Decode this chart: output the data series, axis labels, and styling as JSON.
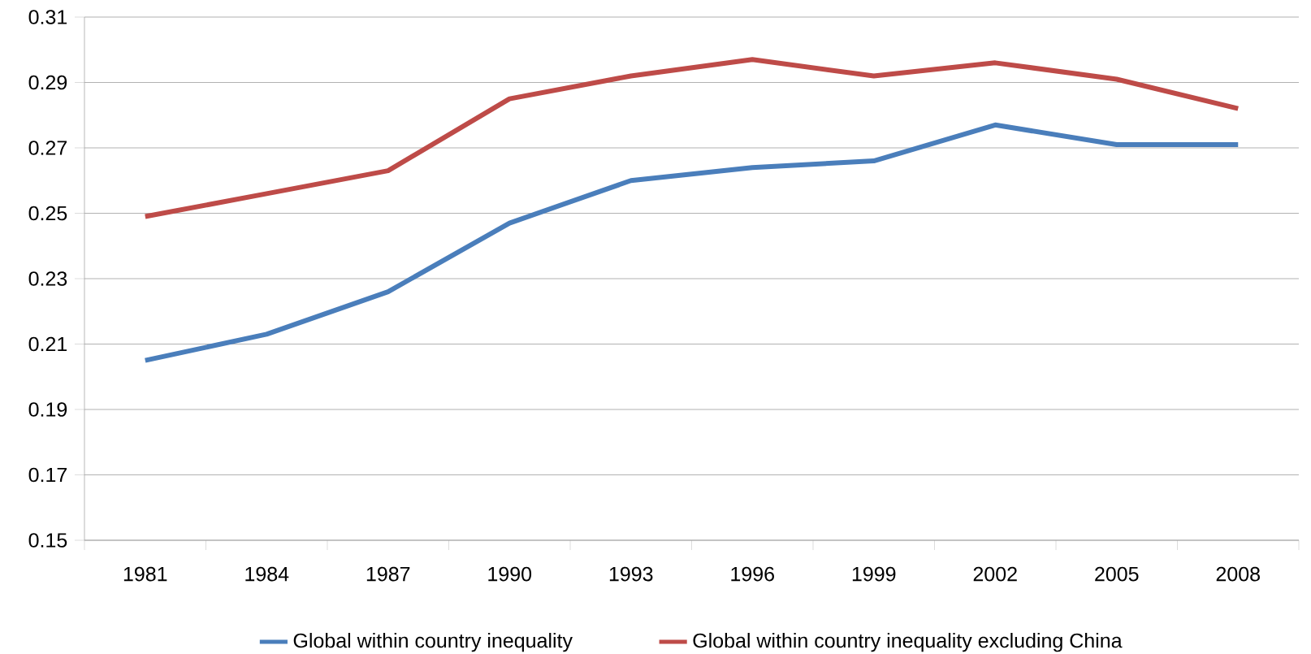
{
  "chart_data": {
    "type": "line",
    "categories": [
      "1981",
      "1984",
      "1987",
      "1990",
      "1993",
      "1996",
      "1999",
      "2002",
      "2005",
      "2008"
    ],
    "series": [
      {
        "name": "Global within country inequality",
        "color": "#4a7ebb",
        "values": [
          0.205,
          0.213,
          0.226,
          0.247,
          0.26,
          0.264,
          0.266,
          0.277,
          0.271,
          0.271
        ]
      },
      {
        "name": "Global within country inequality excluding China",
        "color": "#be4b48",
        "values": [
          0.249,
          0.256,
          0.263,
          0.285,
          0.292,
          0.297,
          0.292,
          0.296,
          0.291,
          0.282
        ]
      }
    ],
    "ylim": [
      0.15,
      0.31
    ],
    "yticks": [
      0.15,
      0.17,
      0.19,
      0.21,
      0.23,
      0.25,
      0.27,
      0.29,
      0.31
    ],
    "grid": "y",
    "legend": "bottom",
    "marker": "none",
    "line_style": "solid"
  }
}
